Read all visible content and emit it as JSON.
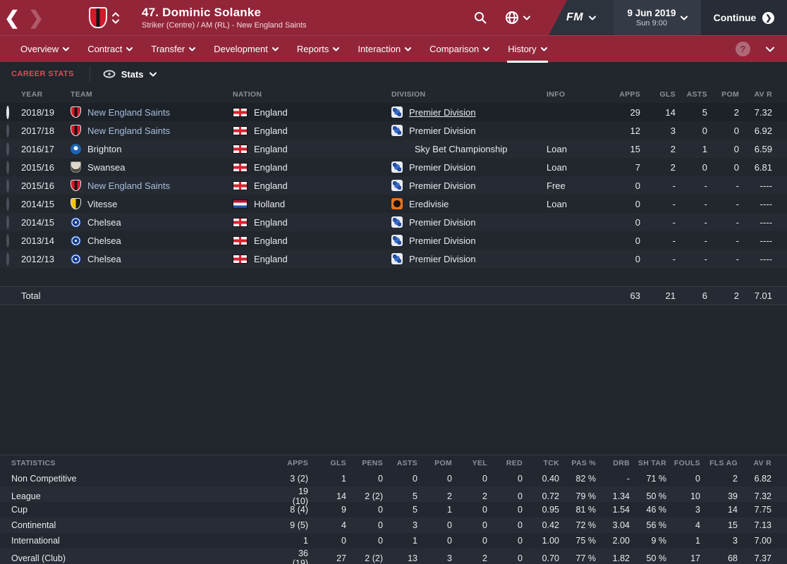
{
  "titlebar": {
    "player_title": "47. Dominic Solanke",
    "player_subtitle": "Striker (Centre) / AM (RL) - New England Saints",
    "fm_logo": "FM",
    "date": "9 Jun 2019",
    "time": "Sun 9:00",
    "continue_label": "Continue",
    "continue_arrow": "❯",
    "back_arrow": "❮",
    "forward_arrow": "❯"
  },
  "nav": {
    "tabs": [
      {
        "label": "Overview",
        "active": false
      },
      {
        "label": "Contract",
        "active": false
      },
      {
        "label": "Transfer",
        "active": false
      },
      {
        "label": "Development",
        "active": false
      },
      {
        "label": "Reports",
        "active": false
      },
      {
        "label": "Interaction",
        "active": false
      },
      {
        "label": "Comparison",
        "active": false
      },
      {
        "label": "History",
        "active": true
      }
    ],
    "help_label": "?"
  },
  "career": {
    "section_label": "CAREER STATS",
    "view_selector_label": "Stats",
    "columns": {
      "year": "YEAR",
      "team": "TEAM",
      "nation": "NATION",
      "division": "DIVISION",
      "info": "INFO",
      "apps": "APPS",
      "gls": "GLS",
      "asts": "ASTS",
      "pom": "POM",
      "avr": "AV R"
    },
    "rows": [
      {
        "year": "2018/19",
        "team": "New England Saints",
        "badge": "nes",
        "team_link": true,
        "nation": "England",
        "flag": "england",
        "division": "Premier Division",
        "div_icon": "premier",
        "div_underline": true,
        "info": "",
        "apps": "29",
        "gls": "14",
        "asts": "5",
        "pom": "2",
        "avr": "7.32",
        "selected": true
      },
      {
        "year": "2017/18",
        "team": "New England Saints",
        "badge": "nes",
        "team_link": true,
        "nation": "England",
        "flag": "england",
        "division": "Premier Division",
        "div_icon": "premier",
        "div_underline": false,
        "info": "",
        "apps": "12",
        "gls": "3",
        "asts": "0",
        "pom": "0",
        "avr": "6.92",
        "selected": false
      },
      {
        "year": "2016/17",
        "team": "Brighton",
        "badge": "brighton",
        "team_link": false,
        "nation": "England",
        "flag": "england",
        "division": "Sky Bet Championship",
        "div_icon": "championship",
        "div_underline": false,
        "info": "Loan",
        "apps": "15",
        "gls": "2",
        "asts": "1",
        "pom": "0",
        "avr": "6.59",
        "selected": false
      },
      {
        "year": "2015/16",
        "team": "Swansea",
        "badge": "swansea",
        "team_link": false,
        "nation": "England",
        "flag": "england",
        "division": "Premier Division",
        "div_icon": "premier",
        "div_underline": false,
        "info": "Loan",
        "apps": "7",
        "gls": "2",
        "asts": "0",
        "pom": "0",
        "avr": "6.81",
        "selected": false
      },
      {
        "year": "2015/16",
        "team": "New England Saints",
        "badge": "nes",
        "team_link": true,
        "nation": "England",
        "flag": "england",
        "division": "Premier Division",
        "div_icon": "premier",
        "div_underline": false,
        "info": "Free",
        "apps": "0",
        "gls": "-",
        "asts": "-",
        "pom": "-",
        "avr": "----",
        "selected": false
      },
      {
        "year": "2014/15",
        "team": "Vitesse",
        "badge": "vitesse",
        "team_link": false,
        "nation": "Holland",
        "flag": "holland",
        "division": "Eredivisie",
        "div_icon": "eredivisie",
        "div_underline": false,
        "info": "Loan",
        "apps": "0",
        "gls": "-",
        "asts": "-",
        "pom": "-",
        "avr": "----",
        "selected": false
      },
      {
        "year": "2014/15",
        "team": "Chelsea",
        "badge": "chelsea",
        "team_link": false,
        "nation": "England",
        "flag": "england",
        "division": "Premier Division",
        "div_icon": "premier",
        "div_underline": false,
        "info": "",
        "apps": "0",
        "gls": "-",
        "asts": "-",
        "pom": "-",
        "avr": "----",
        "selected": false
      },
      {
        "year": "2013/14",
        "team": "Chelsea",
        "badge": "chelsea",
        "team_link": false,
        "nation": "England",
        "flag": "england",
        "division": "Premier Division",
        "div_icon": "premier",
        "div_underline": false,
        "info": "",
        "apps": "0",
        "gls": "-",
        "asts": "-",
        "pom": "-",
        "avr": "----",
        "selected": false
      },
      {
        "year": "2012/13",
        "team": "Chelsea",
        "badge": "chelsea",
        "team_link": false,
        "nation": "England",
        "flag": "england",
        "division": "Premier Division",
        "div_icon": "premier",
        "div_underline": false,
        "info": "",
        "apps": "0",
        "gls": "-",
        "asts": "-",
        "pom": "-",
        "avr": "----",
        "selected": false
      }
    ],
    "total": {
      "label": "Total",
      "apps": "63",
      "gls": "21",
      "asts": "6",
      "pom": "2",
      "avr": "7.01"
    }
  },
  "stats_table": {
    "columns": [
      "STATISTICS",
      "APPS",
      "GLS",
      "PENS",
      "ASTS",
      "POM",
      "YEL",
      "RED",
      "TCK",
      "PAS %",
      "DRB",
      "SH TAR",
      "FOULS",
      "FLS AG",
      "AV R"
    ],
    "rows": [
      {
        "label": "Non Competitive",
        "values": [
          "3 (2)",
          "1",
          "0",
          "0",
          "0",
          "0",
          "0",
          "0.40",
          "82 %",
          "-",
          "71 %",
          "0",
          "2",
          "6.82"
        ]
      },
      {
        "label": "League",
        "values": [
          "19 (10)",
          "14",
          "2 (2)",
          "5",
          "2",
          "2",
          "0",
          "0.72",
          "79 %",
          "1.34",
          "50 %",
          "10",
          "39",
          "7.32"
        ]
      },
      {
        "label": "Cup",
        "values": [
          "8 (4)",
          "9",
          "0",
          "5",
          "1",
          "0",
          "0",
          "0.95",
          "81 %",
          "1.54",
          "46 %",
          "3",
          "14",
          "7.75"
        ]
      },
      {
        "label": "Continental",
        "values": [
          "9 (5)",
          "4",
          "0",
          "3",
          "0",
          "0",
          "0",
          "0.42",
          "72 %",
          "3.04",
          "56 %",
          "4",
          "15",
          "7.13"
        ]
      },
      {
        "label": "International",
        "values": [
          "1",
          "0",
          "0",
          "1",
          "0",
          "0",
          "0",
          "1.00",
          "75 %",
          "2.00",
          "9 %",
          "1",
          "3",
          "7.00"
        ]
      },
      {
        "label": "Overall (Club)",
        "values": [
          "36 (19)",
          "27",
          "2 (2)",
          "13",
          "3",
          "2",
          "0",
          "0.70",
          "77 %",
          "1.82",
          "50 %",
          "17",
          "68",
          "7.37"
        ]
      }
    ]
  },
  "colors": {
    "topbar_maroon": "#932539",
    "accent_red": "#d94f55",
    "link_blue": "#a6bfdd",
    "panel_dark": "#22262d"
  }
}
